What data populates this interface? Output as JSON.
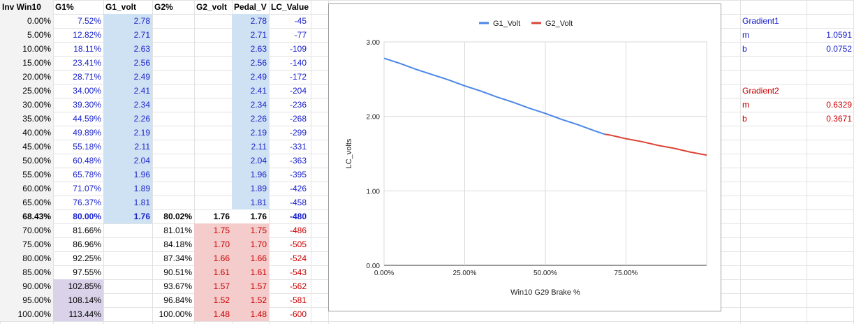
{
  "columns": [
    "Inv Win10",
    "G1%",
    "G1_volt",
    "G2%",
    "G2_volt",
    "Pedal_V",
    "LC_Value"
  ],
  "rows": [
    {
      "inv": "0.00%",
      "g1": "7.52%",
      "g1v": "2.78",
      "g2": "",
      "g2v": "",
      "pedal": "2.78",
      "lc": "-45",
      "seg": "g1"
    },
    {
      "inv": "5.00%",
      "g1": "12.82%",
      "g1v": "2.71",
      "g2": "",
      "g2v": "",
      "pedal": "2.71",
      "lc": "-77",
      "seg": "g1"
    },
    {
      "inv": "10.00%",
      "g1": "18.11%",
      "g1v": "2.63",
      "g2": "",
      "g2v": "",
      "pedal": "2.63",
      "lc": "-109",
      "seg": "g1"
    },
    {
      "inv": "15.00%",
      "g1": "23.41%",
      "g1v": "2.56",
      "g2": "",
      "g2v": "",
      "pedal": "2.56",
      "lc": "-140",
      "seg": "g1"
    },
    {
      "inv": "20.00%",
      "g1": "28.71%",
      "g1v": "2.49",
      "g2": "",
      "g2v": "",
      "pedal": "2.49",
      "lc": "-172",
      "seg": "g1"
    },
    {
      "inv": "25.00%",
      "g1": "34.00%",
      "g1v": "2.41",
      "g2": "",
      "g2v": "",
      "pedal": "2.41",
      "lc": "-204",
      "seg": "g1"
    },
    {
      "inv": "30.00%",
      "g1": "39.30%",
      "g1v": "2.34",
      "g2": "",
      "g2v": "",
      "pedal": "2.34",
      "lc": "-236",
      "seg": "g1"
    },
    {
      "inv": "35.00%",
      "g1": "44.59%",
      "g1v": "2.26",
      "g2": "",
      "g2v": "",
      "pedal": "2.26",
      "lc": "-268",
      "seg": "g1"
    },
    {
      "inv": "40.00%",
      "g1": "49.89%",
      "g1v": "2.19",
      "g2": "",
      "g2v": "",
      "pedal": "2.19",
      "lc": "-299",
      "seg": "g1"
    },
    {
      "inv": "45.00%",
      "g1": "55.18%",
      "g1v": "2.11",
      "g2": "",
      "g2v": "",
      "pedal": "2.11",
      "lc": "-331",
      "seg": "g1"
    },
    {
      "inv": "50.00%",
      "g1": "60.48%",
      "g1v": "2.04",
      "g2": "",
      "g2v": "",
      "pedal": "2.04",
      "lc": "-363",
      "seg": "g1"
    },
    {
      "inv": "55.00%",
      "g1": "65.78%",
      "g1v": "1.96",
      "g2": "",
      "g2v": "",
      "pedal": "1.96",
      "lc": "-395",
      "seg": "g1"
    },
    {
      "inv": "60.00%",
      "g1": "71.07%",
      "g1v": "1.89",
      "g2": "",
      "g2v": "",
      "pedal": "1.89",
      "lc": "-426",
      "seg": "g1"
    },
    {
      "inv": "65.00%",
      "g1": "76.37%",
      "g1v": "1.81",
      "g2": "",
      "g2v": "",
      "pedal": "1.81",
      "lc": "-458",
      "seg": "g1"
    },
    {
      "inv": "68.43%",
      "g1": "80.00%",
      "g1v": "1.76",
      "g2": "80.02%",
      "g2v": "1.76",
      "pedal": "1.76",
      "lc": "-480",
      "seg": "mid"
    },
    {
      "inv": "70.00%",
      "g1": "81.66%",
      "g1v": "",
      "g2": "81.01%",
      "g2v": "1.75",
      "pedal": "1.75",
      "lc": "-486",
      "seg": "g2"
    },
    {
      "inv": "75.00%",
      "g1": "86.96%",
      "g1v": "",
      "g2": "84.18%",
      "g2v": "1.70",
      "pedal": "1.70",
      "lc": "-505",
      "seg": "g2"
    },
    {
      "inv": "80.00%",
      "g1": "92.25%",
      "g1v": "",
      "g2": "87.34%",
      "g2v": "1.66",
      "pedal": "1.66",
      "lc": "-524",
      "seg": "g2"
    },
    {
      "inv": "85.00%",
      "g1": "97.55%",
      "g1v": "",
      "g2": "90.51%",
      "g2v": "1.61",
      "pedal": "1.61",
      "lc": "-543",
      "seg": "g2"
    },
    {
      "inv": "90.00%",
      "g1": "102.85%",
      "g1v": "",
      "g2": "93.67%",
      "g2v": "1.57",
      "pedal": "1.57",
      "lc": "-562",
      "seg": "g2o"
    },
    {
      "inv": "95.00%",
      "g1": "108.14%",
      "g1v": "",
      "g2": "96.84%",
      "g2v": "1.52",
      "pedal": "1.52",
      "lc": "-581",
      "seg": "g2o"
    },
    {
      "inv": "100.00%",
      "g1": "113.44%",
      "g1v": "",
      "g2": "100.00%",
      "g2v": "1.48",
      "pedal": "1.48",
      "lc": "-600",
      "seg": "g2o"
    }
  ],
  "side": {
    "gradient1_label": "Gradient1",
    "m1_label": "m",
    "m1_value": "1.0591",
    "b1_label": "b",
    "b1_value": "0.0752",
    "gradient2_label": "Gradient2",
    "m2_label": "m",
    "m2_value": "0.6329",
    "b2_label": "b",
    "b2_value": "0.3671"
  },
  "colors": {
    "blue_fill": "#cfe2f3",
    "red_fill": "#f4cccc",
    "purple_fill": "#d9d2e9",
    "header_fill": "#f3f3f3",
    "text_blue": "#1a22cc",
    "text_red": "#cc0000",
    "g1_line": "#4a86e8",
    "g2_line": "#db4437"
  },
  "chart_data": {
    "type": "line",
    "title": "",
    "xlabel": "Win10 G29 Brake %",
    "ylabel": "LC_volts",
    "xlim": [
      0,
      1
    ],
    "ylim": [
      0,
      3
    ],
    "x_ticks": [
      0,
      0.25,
      0.5,
      0.75
    ],
    "x_tick_labels": [
      "0.00%",
      "25.00%",
      "50.00%",
      "75.00%"
    ],
    "y_ticks": [
      0,
      1,
      2,
      3
    ],
    "y_tick_labels": [
      "0.00",
      "1.00",
      "2.00",
      "3.00"
    ],
    "grid": true,
    "legend_position": "top",
    "series": [
      {
        "name": "G1_Volt",
        "color": "#4a86e8",
        "x": [
          0,
          0.05,
          0.1,
          0.15,
          0.2,
          0.25,
          0.3,
          0.35,
          0.4,
          0.45,
          0.5,
          0.55,
          0.6,
          0.65,
          0.6843
        ],
        "y": [
          2.78,
          2.71,
          2.63,
          2.56,
          2.49,
          2.41,
          2.34,
          2.26,
          2.19,
          2.11,
          2.04,
          1.96,
          1.89,
          1.81,
          1.76
        ]
      },
      {
        "name": "G2_Volt",
        "color": "#db4437",
        "x": [
          0.6843,
          0.7,
          0.75,
          0.8,
          0.85,
          0.9,
          0.95,
          1.0
        ],
        "y": [
          1.76,
          1.75,
          1.7,
          1.66,
          1.61,
          1.57,
          1.52,
          1.48
        ]
      }
    ]
  }
}
